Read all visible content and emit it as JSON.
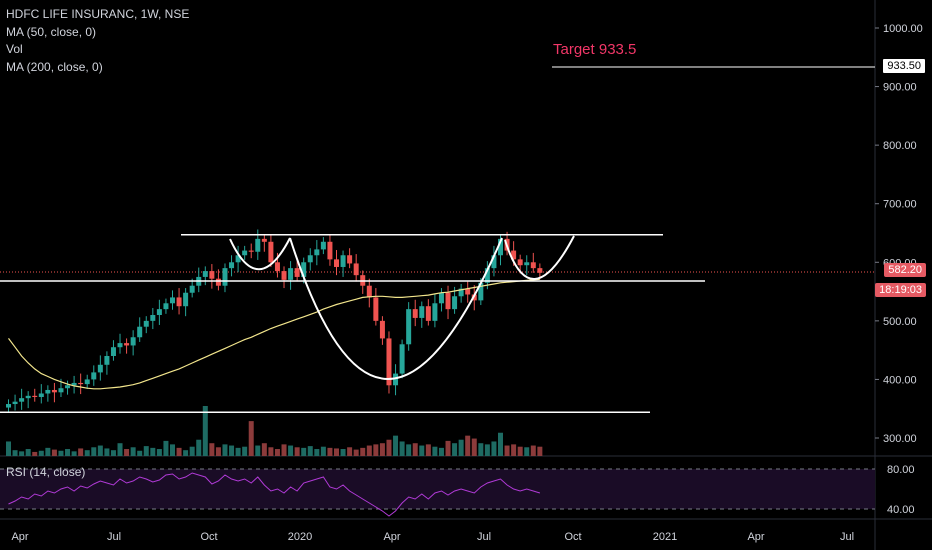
{
  "legend": {
    "symbol": "HDFC LIFE INSURANC, 1W, NSE",
    "ma50": "MA (50, close, 0)",
    "vol": "Vol",
    "ma200": "MA (200, close, 0)"
  },
  "rsi_label": "RSI (14, close)",
  "annotation": {
    "target_text": "Target 933.5"
  },
  "price_tags": {
    "target": "933.50",
    "last": "582.20",
    "timer": "18:19:03"
  },
  "colors": {
    "up": "#26a69a",
    "down": "#ef5350",
    "ma50": "#f2e58c",
    "rsi": "#b03ad6",
    "tag": "#e55a63",
    "target": "#f23768"
  },
  "chart_data": {
    "type": "candlestick",
    "title": "HDFC LIFE INSURANC, 1W, NSE",
    "price_axis": {
      "ticks": [
        1000,
        900,
        800,
        700,
        600,
        500,
        400,
        300
      ],
      "tick_labels": [
        "1000.00",
        "900.00",
        "800.00",
        "700.00",
        "600.00",
        "500.00",
        "400.00",
        "300.00"
      ]
    },
    "rsi_axis": {
      "ticks": [
        80,
        40
      ],
      "tick_labels": [
        "80.00",
        "40.00"
      ]
    },
    "x_axis_labels": [
      "Apr",
      "Jul",
      "Oct",
      "2020",
      "Apr",
      "Jul",
      "Oct",
      "2021",
      "Apr",
      "Jul"
    ],
    "trendlines": {
      "resistance": 647,
      "neckline_support": 568,
      "bottom_support": 344,
      "target": 933.5
    },
    "last_price": 582.2,
    "closes": [
      358,
      362,
      368,
      372,
      370,
      376,
      382,
      378,
      385,
      390,
      394,
      392,
      400,
      412,
      425,
      440,
      455,
      462,
      458,
      472,
      490,
      500,
      510,
      520,
      530,
      540,
      525,
      548,
      560,
      575,
      585,
      572,
      560,
      590,
      600,
      612,
      620,
      618,
      640,
      635,
      600,
      585,
      570,
      590,
      575,
      600,
      612,
      622,
      635,
      605,
      592,
      612,
      598,
      578,
      560,
      540,
      500,
      470,
      390,
      410,
      460,
      520,
      505,
      525,
      500,
      530,
      548,
      520,
      542,
      555,
      545,
      535,
      565,
      590,
      612,
      640,
      620,
      605,
      595,
      600,
      590,
      582
    ],
    "volume": [
      25,
      10,
      8,
      12,
      7,
      9,
      14,
      11,
      9,
      12,
      8,
      13,
      10,
      15,
      18,
      13,
      10,
      22,
      12,
      15,
      9,
      17,
      14,
      12,
      26,
      20,
      14,
      10,
      16,
      28,
      86,
      22,
      15,
      20,
      18,
      14,
      16,
      60,
      18,
      22,
      15,
      12,
      20,
      18,
      15,
      14,
      17,
      12,
      16,
      14,
      13,
      12,
      15,
      11,
      14,
      18,
      20,
      22,
      28,
      35,
      25,
      20,
      22,
      18,
      20,
      16,
      14,
      26,
      22,
      28,
      35,
      30,
      22,
      20,
      25,
      40,
      18,
      20,
      16,
      15,
      18,
      16
    ],
    "ma50": [
      470,
      455,
      440,
      428,
      418,
      410,
      405,
      400,
      396,
      392,
      389,
      387,
      385,
      384,
      384,
      385,
      386,
      387,
      389,
      391,
      394,
      398,
      402,
      406,
      410,
      414,
      418,
      423,
      428,
      433,
      438,
      443,
      448,
      453,
      458,
      463,
      468,
      472,
      477,
      482,
      487,
      491,
      495,
      499,
      503,
      507,
      511,
      515,
      520,
      524,
      528,
      531,
      534,
      537,
      540,
      541,
      542,
      542,
      541,
      540,
      540,
      541,
      542,
      543,
      544,
      546,
      548,
      549,
      551,
      553,
      555,
      557,
      559,
      561,
      563,
      565,
      566,
      567,
      568,
      569,
      570,
      571
    ],
    "rsi": [
      45,
      48,
      52,
      50,
      55,
      53,
      58,
      56,
      60,
      62,
      58,
      63,
      61,
      65,
      68,
      66,
      64,
      70,
      66,
      68,
      72,
      70,
      67,
      69,
      74,
      75,
      70,
      72,
      76,
      74,
      72,
      65,
      68,
      74,
      70,
      68,
      70,
      66,
      72,
      64,
      58,
      60,
      56,
      62,
      58,
      66,
      68,
      70,
      72,
      62,
      60,
      64,
      58,
      54,
      50,
      46,
      42,
      38,
      33,
      38,
      46,
      52,
      50,
      55,
      50,
      56,
      58,
      54,
      58,
      60,
      58,
      56,
      62,
      66,
      68,
      70,
      64,
      60,
      58,
      60,
      58,
      56
    ]
  }
}
